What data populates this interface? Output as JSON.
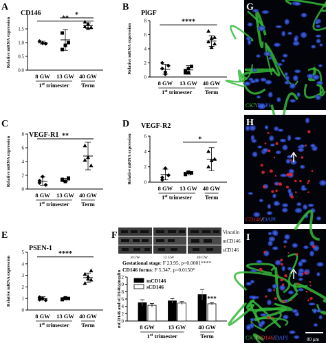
{
  "panels": {
    "A": {
      "letter": "A",
      "title": "CD146"
    },
    "B": {
      "letter": "B",
      "title": "PlGF"
    },
    "C": {
      "letter": "C",
      "title": "VEGF-R1"
    },
    "D": {
      "letter": "D",
      "title": "VEGF-R2"
    },
    "E": {
      "letter": "E",
      "title": "PSEN-1"
    },
    "F": {
      "letter": "F"
    },
    "G": {
      "letter": "G"
    },
    "H": {
      "letter": "H"
    },
    "I": {
      "letter": "I"
    }
  },
  "common": {
    "ylabel": "Relative mRNA expression",
    "ticks": [
      "8 GW",
      "13 GW",
      "40 GW"
    ],
    "trimester_prefix": "1",
    "trimester_sup": "st",
    "trimester_suffix": " trimester",
    "term": "Term"
  },
  "blot": {
    "lanes": [
      "8 GW",
      "13 GW",
      "40 GW"
    ],
    "labels": [
      "Vinculin",
      "mCD146",
      "sCD146"
    ]
  },
  "stats": {
    "line1_bold": "Gestational stage",
    "line1_rest": ": F 23.95, p=0.0001****",
    "line2_bold": "CD146 forms",
    "line2_rest": ": F 5.347, p=0.0150*"
  },
  "micro": {
    "G": {
      "green": "CK7",
      "sep": "/",
      "blue": "DAPI"
    },
    "H": {
      "red": "CD146",
      "sep": "/",
      "blue": "DAPI"
    },
    "I": {
      "green": "CK7",
      "sep1": "/",
      "red": "CD146",
      "sep2": "/",
      "blue": "DAPI"
    },
    "scale": "80 µm"
  },
  "colors": {
    "axis": "#000000",
    "bar_m": "#000000",
    "bar_s": "#ffffff",
    "green": "#39c43b",
    "red": "#e0202a",
    "blue": "#3b6bff"
  },
  "chart_data": [
    {
      "id": "A",
      "type": "scatter",
      "title": "CD146",
      "ylabel": "Relative mRNA expression",
      "categories": [
        "8 GW",
        "13 GW",
        "40 GW"
      ],
      "ylim": [
        0,
        2.0
      ],
      "yticks": [
        0,
        0.5,
        1.0,
        1.5
      ],
      "points": [
        [
          1.05,
          0.98,
          0.96
        ],
        [
          1.35,
          0.9,
          1.0,
          0.75
        ],
        [
          1.58,
          1.68,
          1.55,
          1.75,
          1.52
        ]
      ],
      "mean": [
        1.0,
        1.1,
        1.62
      ],
      "sd": [
        0.05,
        0.38,
        0.1
      ],
      "sig": [
        {
          "from": 1,
          "to": 2,
          "label": "*",
          "level": 1.9
        },
        {
          "from": 0,
          "to": 2,
          "label": "**",
          "level": 1.78
        }
      ]
    },
    {
      "id": "B",
      "type": "scatter",
      "title": "PlGF",
      "ylabel": "Relative mRNA expression",
      "categories": [
        "8 GW",
        "13 GW",
        "40 GW"
      ],
      "ylim": [
        0,
        8
      ],
      "yticks": [
        0,
        2,
        4,
        6,
        8
      ],
      "points": [
        [
          1.2,
          0.4,
          1.6,
          2.0,
          0.7
        ],
        [
          0.6,
          1.2,
          1.5,
          0.9,
          0.6
        ],
        [
          5.0,
          4.2,
          5.6,
          6.5,
          5.5,
          4.7
        ]
      ],
      "mean": [
        1.1,
        1.0,
        5.1
      ],
      "sd": [
        0.7,
        0.6,
        0.75
      ],
      "sig": [
        {
          "from": 0,
          "to": 2,
          "label": "****",
          "level": 7.4
        }
      ]
    },
    {
      "id": "C",
      "type": "scatter",
      "title": "VEGF-R1",
      "ylabel": "Relative mRNA expression",
      "categories": [
        "8 GW",
        "13 GW",
        "40 GW"
      ],
      "ylim": [
        0,
        8
      ],
      "yticks": [
        0,
        2,
        4,
        6,
        8
      ],
      "points": [
        [
          0.9,
          1.8,
          0.6,
          1.2
        ],
        [
          1.4,
          1.1,
          1.6,
          1.3
        ],
        [
          6.3,
          4.6,
          3.4,
          4.2
        ]
      ],
      "mean": [
        1.15,
        1.3,
        4.8
      ],
      "sd": [
        0.6,
        0.25,
        2.0
      ],
      "sig": [
        {
          "from": 0,
          "to": 2,
          "label": "**",
          "level": 7.3
        }
      ]
    },
    {
      "id": "D",
      "type": "scatter",
      "title": "VEGF-R2",
      "ylabel": "Relative mRNA expression",
      "categories": [
        "8 GW",
        "13 GW",
        "40 GW"
      ],
      "ylim": [
        0,
        6
      ],
      "yticks": [
        0,
        2,
        4,
        6
      ],
      "points": [
        [
          0.6,
          1.8,
          0.9,
          0.3
        ],
        [
          1.0,
          1.3,
          1.2,
          1.1
        ],
        [
          4.0,
          2.8,
          3.0,
          2.0
        ]
      ],
      "mean": [
        1.0,
        1.15,
        3.0
      ],
      "sd": [
        0.7,
        0.2,
        1.5
      ],
      "sig": [
        {
          "from": 1,
          "to": 2,
          "label": "*",
          "level": 5.2
        }
      ]
    },
    {
      "id": "E",
      "type": "scatter",
      "title": "PSEN-1",
      "ylabel": "Relative mRNA expression",
      "categories": [
        "8 GW",
        "13 GW",
        "40 GW"
      ],
      "ylim": [
        0,
        5
      ],
      "yticks": [
        0,
        1,
        2,
        3,
        4,
        5
      ],
      "points": [
        [
          0.9,
          1.0,
          0.85,
          1.1,
          1.0
        ],
        [
          0.9,
          1.0,
          1.0,
          0.95,
          1.05
        ],
        [
          2.3,
          2.9,
          2.6,
          3.1,
          2.7,
          3.4
        ]
      ],
      "mean": [
        1.0,
        1.0,
        2.8
      ],
      "sd": [
        0.15,
        0.1,
        0.4
      ],
      "sig": [
        {
          "from": 0,
          "to": 2,
          "label": "****",
          "level": 4.6
        }
      ]
    },
    {
      "id": "F",
      "type": "bar",
      "ylabel": "mCD146 and sCD146/vinculin",
      "categories": [
        "8 GW",
        "13 GW",
        "40 GW"
      ],
      "ylim": [
        0,
        12
      ],
      "yticks": [
        0,
        2,
        4,
        6,
        8,
        10,
        12
      ],
      "series": [
        {
          "name": "mCD146",
          "values": [
            5.0,
            5.5,
            7.2
          ],
          "err": [
            0.8,
            0.6,
            1.4
          ]
        },
        {
          "name": "sCD146",
          "values": [
            4.3,
            4.9,
            4.7
          ],
          "err": [
            0.5,
            0.4,
            0.3
          ]
        }
      ],
      "annotations": [
        {
          "category": "40 GW",
          "series": "sCD146",
          "label": "***"
        }
      ]
    }
  ]
}
